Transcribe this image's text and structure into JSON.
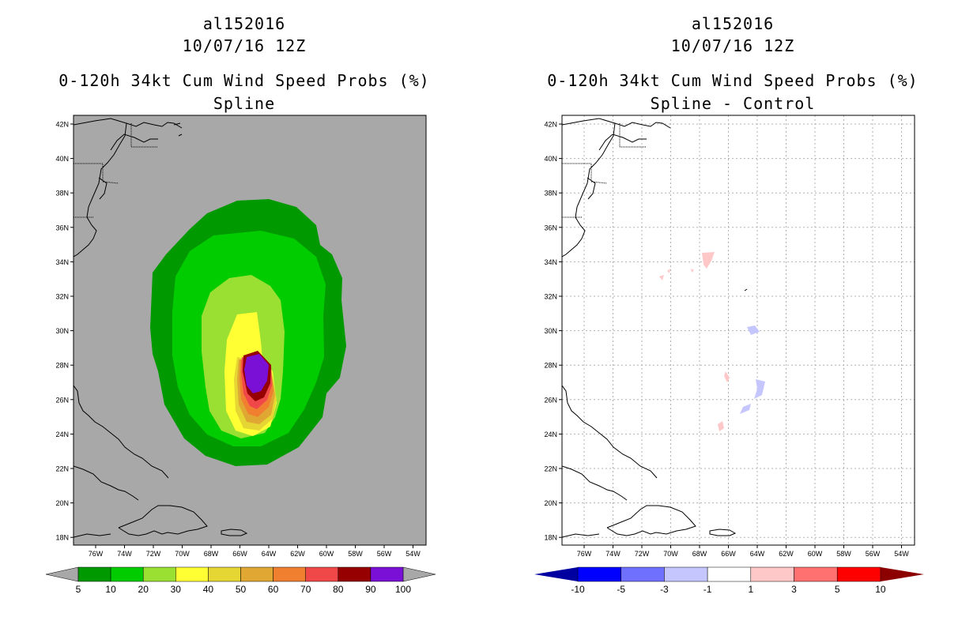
{
  "colors": {
    "land": "#a8a8a8",
    "water_bg_diff": "#ffffff",
    "prob": [
      "#009900",
      "#00cc00",
      "#99e033",
      "#ffff33",
      "#e6d633",
      "#e0a833",
      "#f08030",
      "#f04848",
      "#960000",
      "#7a0fd6"
    ],
    "diff": [
      "#0000a0",
      "#0000ff",
      "#7070ff",
      "#c6c6ff",
      "#ffffff",
      "#ffc8c8",
      "#ff7070",
      "#ff0000",
      "#8c0000"
    ],
    "grid": "#b0b0b0"
  },
  "left": {
    "storm_id": "al152016",
    "datetime": "10/07/16 12Z",
    "product": "0-120h 34kt Cum Wind Speed Probs (%)",
    "subtitle": "Spline",
    "colorbar_labels": [
      "5",
      "10",
      "20",
      "30",
      "40",
      "50",
      "60",
      "70",
      "80",
      "90",
      "100"
    ]
  },
  "right": {
    "storm_id": "al152016",
    "datetime": "10/07/16 12Z",
    "product": "0-120h 34kt Cum Wind Speed Probs (%)",
    "subtitle": "Spline - Control",
    "colorbar_labels": [
      "-10",
      "-5",
      "-3",
      "-1",
      "1",
      "3",
      "5",
      "10"
    ]
  },
  "axes": {
    "lat_labels": [
      "42N",
      "40N",
      "38N",
      "36N",
      "34N",
      "32N",
      "30N",
      "28N",
      "26N",
      "24N",
      "22N",
      "20N",
      "18N"
    ],
    "lon_labels": [
      "76W",
      "74W",
      "72W",
      "70W",
      "68W",
      "66W",
      "64W",
      "62W",
      "60W",
      "58W",
      "56W",
      "54W"
    ]
  }
}
